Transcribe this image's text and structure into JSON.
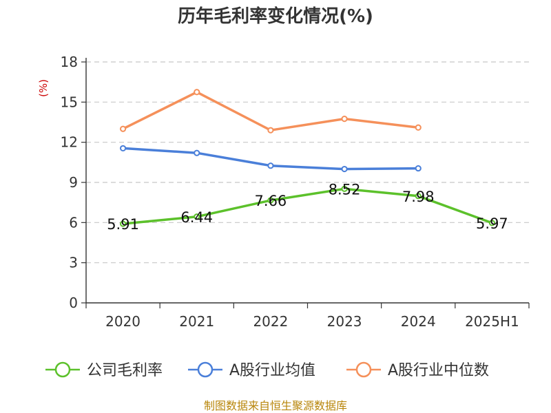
{
  "chart_data": {
    "type": "line",
    "title": "历年毛利率变化情况(%)",
    "ylabel": "(%)",
    "xlabel": "",
    "categories": [
      "2020",
      "2021",
      "2022",
      "2023",
      "2024",
      "2025H1"
    ],
    "ylim": [
      0,
      18
    ],
    "yticks": [
      0,
      3,
      6,
      9,
      12,
      15,
      18
    ],
    "grid": true,
    "legend_position": "bottom",
    "series": [
      {
        "name": "公司毛利率",
        "color": "#5cc12b",
        "show_labels": true,
        "values": [
          5.91,
          6.44,
          7.66,
          8.52,
          7.98,
          5.97
        ],
        "labels": [
          "5.91",
          "6.44",
          "7.66",
          "8.52",
          "7.98",
          "5.97"
        ]
      },
      {
        "name": "A股行业均值",
        "color": "#4a7fd9",
        "show_labels": false,
        "values": [
          11.55,
          11.2,
          10.25,
          10.0,
          10.05,
          null
        ]
      },
      {
        "name": "A股行业中位数",
        "color": "#f5905a",
        "show_labels": false,
        "values": [
          13.0,
          15.75,
          12.9,
          13.75,
          13.1,
          null
        ]
      }
    ],
    "source": "制图数据来自恒生聚源数据库"
  }
}
